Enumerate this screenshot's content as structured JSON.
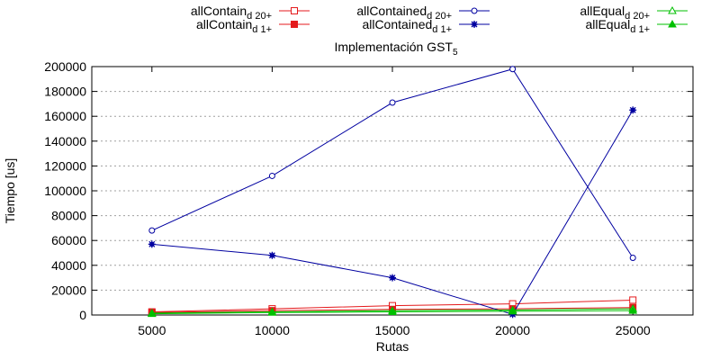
{
  "chart_data": {
    "type": "line",
    "title": "Implementación GST",
    "title_subscript": "5",
    "xlabel": "Rutas",
    "ylabel": "Tiempo [us]",
    "xlim": [
      2500,
      27500
    ],
    "ylim": [
      0,
      200000
    ],
    "x": [
      5000,
      10000,
      15000,
      20000,
      25000
    ],
    "xticks": [
      "5000",
      "10000",
      "15000",
      "20000",
      "25000"
    ],
    "yticks": [
      "0",
      "20000",
      "40000",
      "60000",
      "80000",
      "100000",
      "120000",
      "140000",
      "160000",
      "180000",
      "200000"
    ],
    "grid": true,
    "legend_position": "top",
    "series": [
      {
        "name": "allContain",
        "sub": "d 20+",
        "color": "#e41a1c",
        "marker": "square-open",
        "values": [
          2500,
          5000,
          7500,
          9000,
          12000
        ]
      },
      {
        "name": "allContain",
        "sub": "d 1+",
        "color": "#e41a1c",
        "marker": "square-filled",
        "values": [
          2000,
          3500,
          4500,
          5000,
          6000
        ]
      },
      {
        "name": "allContained",
        "sub": "d 20+",
        "color": "#0000a0",
        "marker": "circle-open",
        "values": [
          68000,
          112000,
          171000,
          198000,
          46000
        ]
      },
      {
        "name": "allContained",
        "sub": "d 1+",
        "color": "#0000a0",
        "marker": "star",
        "values": [
          57000,
          48000,
          30000,
          500,
          165000
        ]
      },
      {
        "name": "allEqual",
        "sub": "d 20+",
        "color": "#00c000",
        "marker": "triangle-open",
        "values": [
          1500,
          2500,
          3500,
          4000,
          5000
        ]
      },
      {
        "name": "allEqual",
        "sub": "d 1+",
        "color": "#00c000",
        "marker": "triangle-filled",
        "values": [
          1000,
          2000,
          2500,
          3000,
          3500
        ]
      }
    ]
  }
}
